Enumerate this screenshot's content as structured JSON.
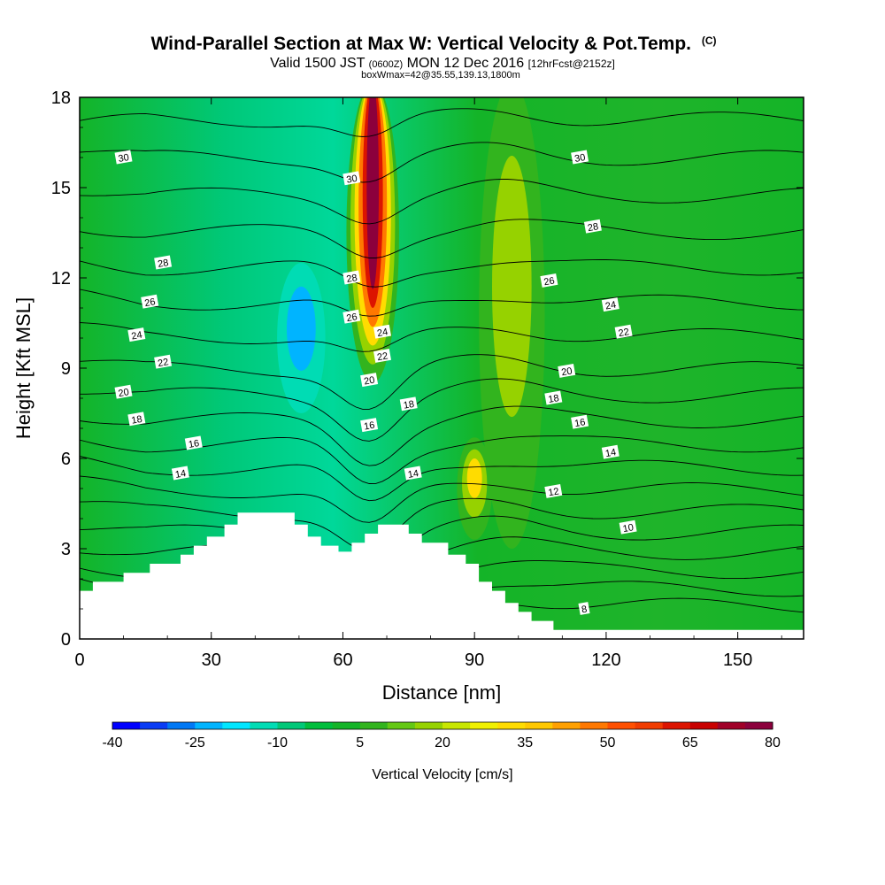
{
  "chart_data": {
    "type": "contour",
    "title": "Wind-Parallel Section at Max W: Vertical Velocity & Pot.Temp.",
    "title_mark": "(C)",
    "subtitle_main": "Valid 1500 JST ",
    "subtitle_utc": "(0600Z)",
    "subtitle_date": " MON 12 Dec 2016 ",
    "subtitle_fcst": "[12hrFcst@2152z]",
    "boxline": "boxWmax=42@35.55,139.13,1800m",
    "xlabel": "Distance [nm]",
    "ylabel": "Height [Kft MSL]",
    "xlim": [
      0,
      165
    ],
    "ylim": [
      0,
      18
    ],
    "xticks": [
      0,
      30,
      60,
      90,
      120,
      150
    ],
    "yticks": [
      0,
      3,
      6,
      9,
      12,
      15,
      18
    ],
    "colorbar": {
      "label": "Vertical Velocity [cm/s]",
      "levels": [
        -40,
        -35,
        -30,
        -25,
        -20,
        -15,
        -10,
        -5,
        0,
        5,
        10,
        15,
        20,
        25,
        30,
        35,
        40,
        45,
        50,
        55,
        60,
        65,
        70,
        75,
        80
      ],
      "tick_labels": [
        "-40",
        "-25",
        "-10",
        "5",
        "20",
        "35",
        "50",
        "65",
        "80"
      ],
      "colors": [
        "#0000ff",
        "#0a3cf5",
        "#0078f5",
        "#00b4ff",
        "#00e6ff",
        "#00dcb4",
        "#00c878",
        "#00be3c",
        "#14b428",
        "#32b41e",
        "#64c814",
        "#96d200",
        "#c8e600",
        "#f0f000",
        "#ffdc00",
        "#ffc800",
        "#ffa000",
        "#ff7800",
        "#ff5000",
        "#f03c00",
        "#dc1400",
        "#c80000",
        "#a00028",
        "#8c003c",
        "#780078"
      ]
    },
    "isentrope_label_units": "Pot.Temp. (C)",
    "isentrope_labels": [
      {
        "value": "30",
        "x": 10,
        "z": 16.0
      },
      {
        "value": "30",
        "x": 62,
        "z": 15.3
      },
      {
        "value": "30",
        "x": 114,
        "z": 16.0
      },
      {
        "value": "28",
        "x": 19,
        "z": 12.5
      },
      {
        "value": "28",
        "x": 62,
        "z": 12.0
      },
      {
        "value": "28",
        "x": 117,
        "z": 13.7
      },
      {
        "value": "26",
        "x": 16,
        "z": 11.2
      },
      {
        "value": "26",
        "x": 62,
        "z": 10.7
      },
      {
        "value": "26",
        "x": 107,
        "z": 11.9
      },
      {
        "value": "24",
        "x": 13,
        "z": 10.1
      },
      {
        "value": "24",
        "x": 69,
        "z": 10.2
      },
      {
        "value": "24",
        "x": 121,
        "z": 11.1
      },
      {
        "value": "22",
        "x": 19,
        "z": 9.2
      },
      {
        "value": "22",
        "x": 69,
        "z": 9.4
      },
      {
        "value": "22",
        "x": 124,
        "z": 10.2
      },
      {
        "value": "20",
        "x": 10,
        "z": 8.2
      },
      {
        "value": "20",
        "x": 66,
        "z": 8.6
      },
      {
        "value": "20",
        "x": 111,
        "z": 8.9
      },
      {
        "value": "18",
        "x": 13,
        "z": 7.3
      },
      {
        "value": "18",
        "x": 75,
        "z": 7.8
      },
      {
        "value": "18",
        "x": 108,
        "z": 8.0
      },
      {
        "value": "16",
        "x": 26,
        "z": 6.5
      },
      {
        "value": "16",
        "x": 66,
        "z": 7.1
      },
      {
        "value": "16",
        "x": 114,
        "z": 7.2
      },
      {
        "value": "14",
        "x": 23,
        "z": 5.5
      },
      {
        "value": "14",
        "x": 76,
        "z": 5.5
      },
      {
        "value": "14",
        "x": 121,
        "z": 6.2
      },
      {
        "value": "12",
        "x": 108,
        "z": 4.9
      },
      {
        "value": "10",
        "x": 125,
        "z": 3.7
      },
      {
        "value": "8",
        "x": 115,
        "z": 1.0
      }
    ],
    "terrain": [
      [
        0,
        1.6
      ],
      [
        3,
        1.6
      ],
      [
        3,
        1.9
      ],
      [
        10,
        1.9
      ],
      [
        10,
        2.2
      ],
      [
        16,
        2.2
      ],
      [
        16,
        2.5
      ],
      [
        23,
        2.5
      ],
      [
        23,
        2.8
      ],
      [
        26,
        2.8
      ],
      [
        26,
        3.1
      ],
      [
        29,
        3.1
      ],
      [
        29,
        3.4
      ],
      [
        33,
        3.4
      ],
      [
        33,
        3.8
      ],
      [
        36,
        3.8
      ],
      [
        36,
        4.2
      ],
      [
        49,
        4.2
      ],
      [
        49,
        3.8
      ],
      [
        52,
        3.8
      ],
      [
        52,
        3.4
      ],
      [
        55,
        3.4
      ],
      [
        55,
        3.1
      ],
      [
        59,
        3.1
      ],
      [
        59,
        2.9
      ],
      [
        62,
        2.9
      ],
      [
        62,
        3.2
      ],
      [
        65,
        3.2
      ],
      [
        65,
        3.5
      ],
      [
        68,
        3.5
      ],
      [
        68,
        3.8
      ],
      [
        75,
        3.8
      ],
      [
        75,
        3.5
      ],
      [
        78,
        3.5
      ],
      [
        78,
        3.2
      ],
      [
        84,
        3.2
      ],
      [
        84,
        2.8
      ],
      [
        88,
        2.8
      ],
      [
        88,
        2.5
      ],
      [
        91,
        2.5
      ],
      [
        91,
        1.9
      ],
      [
        94,
        1.9
      ],
      [
        94,
        1.6
      ],
      [
        97,
        1.6
      ],
      [
        97,
        1.2
      ],
      [
        100,
        1.2
      ],
      [
        100,
        0.9
      ],
      [
        103,
        0.9
      ],
      [
        103,
        0.6
      ],
      [
        108,
        0.6
      ],
      [
        108,
        0.3
      ],
      [
        165,
        0.3
      ]
    ],
    "features": [
      {
        "name": "updraft-max-col",
        "x0": 60,
        "x1": 72,
        "w": 80
      },
      {
        "name": "updraft-east-col",
        "x0": 91,
        "x1": 106,
        "w": 25
      },
      {
        "name": "updraft-low-core",
        "x0": 86,
        "x1": 94,
        "w": 45
      },
      {
        "name": "downdraft-west",
        "x0": 45,
        "x1": 56,
        "w": -25
      }
    ]
  }
}
